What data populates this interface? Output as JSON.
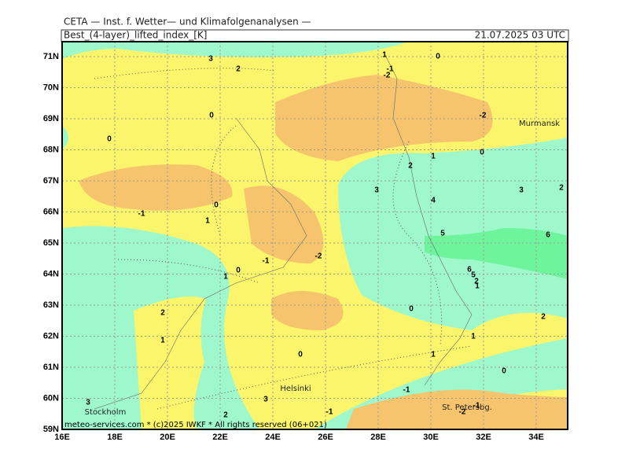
{
  "header": {
    "institute": "CETA — Inst. f. Wetter— und Klimafolgenanalysen —",
    "parameter": "Best_(4-layer)_lifted_index_[K]",
    "valid_time": "21.07.2025 03 UTC"
  },
  "map": {
    "lat_ticks": [
      {
        "value": 71,
        "label": "71N"
      },
      {
        "value": 70,
        "label": "70N"
      },
      {
        "value": 69,
        "label": "69N"
      },
      {
        "value": 68,
        "label": "68N"
      },
      {
        "value": 67,
        "label": "67N"
      },
      {
        "value": 66,
        "label": "66N"
      },
      {
        "value": 65,
        "label": "65N"
      },
      {
        "value": 64,
        "label": "64N"
      },
      {
        "value": 63,
        "label": "63N"
      },
      {
        "value": 62,
        "label": "62N"
      },
      {
        "value": 61,
        "label": "61N"
      },
      {
        "value": 60,
        "label": "60N"
      },
      {
        "value": 59,
        "label": "59N"
      }
    ],
    "lon_ticks": [
      {
        "value": 16,
        "label": "16E"
      },
      {
        "value": 18,
        "label": "18E"
      },
      {
        "value": 20,
        "label": "20E"
      },
      {
        "value": 22,
        "label": "22E"
      },
      {
        "value": 24,
        "label": "24E"
      },
      {
        "value": 26,
        "label": "26E"
      },
      {
        "value": 28,
        "label": "28E"
      },
      {
        "value": 30,
        "label": "30E"
      },
      {
        "value": 32,
        "label": "32E"
      },
      {
        "value": 34,
        "label": "34E"
      }
    ],
    "cities": [
      "Murmansk",
      "Helsinki",
      "Stockholm",
      "St. Petersbg."
    ],
    "contour_labels": [
      3,
      2,
      1,
      0,
      -1,
      -2,
      0,
      -2,
      0,
      0,
      2,
      1,
      3,
      4,
      3,
      2,
      -1,
      0,
      1,
      5,
      6,
      -1,
      -2,
      0,
      1,
      6,
      5,
      2,
      1,
      0,
      2,
      2,
      1,
      1,
      0,
      1,
      0,
      -1,
      3,
      3,
      -1,
      -2,
      -1,
      2
    ],
    "copyright": "meteo-services.com * (c)2025 IWKF * All rights reserved (06+021)"
  }
}
